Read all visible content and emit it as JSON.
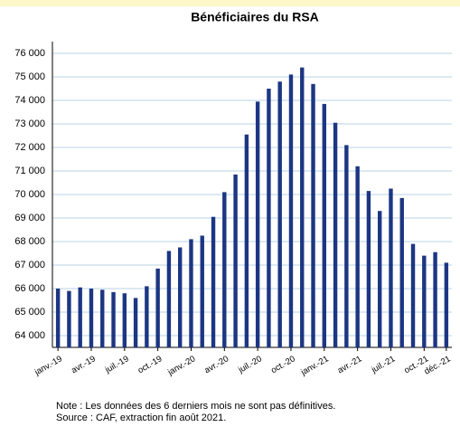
{
  "chart_data": {
    "type": "bar",
    "title": "Bénéficiaires du RSA",
    "categories": [
      "janv.-19",
      null,
      null,
      "avr.-19",
      null,
      null,
      "juil.-19",
      null,
      null,
      "oct.-19",
      null,
      null,
      "janv.-20",
      null,
      null,
      "avr.-20",
      null,
      null,
      "juil.-20",
      null,
      null,
      "oct.-20",
      null,
      null,
      "janv.-21",
      null,
      null,
      "avr.-21",
      null,
      null,
      "juil.-21",
      null,
      null,
      "oct.-21",
      null,
      "déc.-21"
    ],
    "values": [
      66000,
      65900,
      66050,
      66000,
      65950,
      65850,
      65800,
      65600,
      66100,
      66850,
      67600,
      67750,
      68100,
      68250,
      69050,
      70100,
      70850,
      72550,
      73950,
      74500,
      74800,
      75100,
      75400,
      74700,
      73850,
      73050,
      72100,
      71200,
      70150,
      69300,
      70250,
      69850,
      67900,
      67400,
      67550,
      67100
    ],
    "color": "#1c3683",
    "ylim": [
      63500,
      76500
    ],
    "yticks": [
      {
        "value": 64000,
        "label": "64 000"
      },
      {
        "value": 65000,
        "label": "65 000"
      },
      {
        "value": 66000,
        "label": "66 000"
      },
      {
        "value": 67000,
        "label": "67 000"
      },
      {
        "value": 68000,
        "label": "68 000"
      },
      {
        "value": 69000,
        "label": "69 000"
      },
      {
        "value": 70000,
        "label": "70 000"
      },
      {
        "value": 71000,
        "label": "71 000"
      },
      {
        "value": 72000,
        "label": "72 000"
      },
      {
        "value": 73000,
        "label": "73 000"
      },
      {
        "value": 74000,
        "label": "74 000"
      },
      {
        "value": 75000,
        "label": "75 000"
      },
      {
        "value": 76000,
        "label": "76 000"
      }
    ],
    "grid": true,
    "notes": [
      "Note : Les données des 6 derniers mois ne sont pas définitives.",
      "Source : CAF, extraction fin août 2021."
    ]
  }
}
